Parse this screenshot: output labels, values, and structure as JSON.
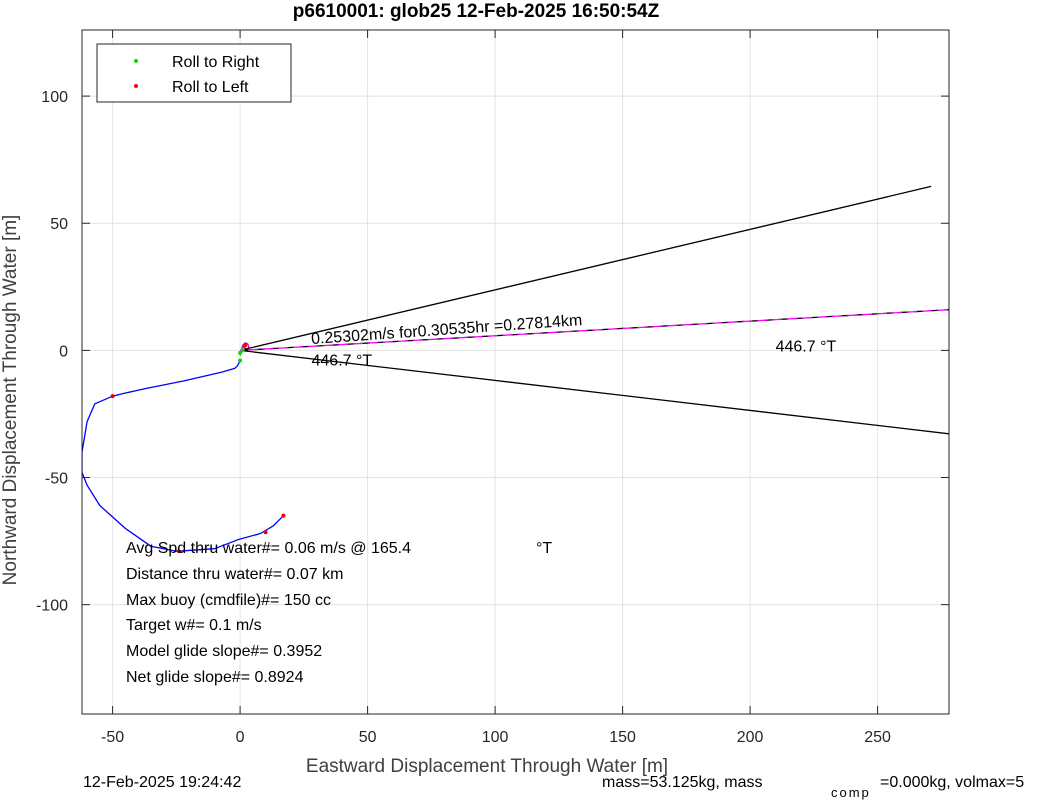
{
  "chart_data": {
    "type": "line",
    "title": "p6610001: glob25 12-Feb-2025 16:50:54Z",
    "xlabel": "Eastward Displacement Through Water [m]",
    "ylabel": "Northward Displacement Through Water [m]",
    "xlim": [
      -62,
      278
    ],
    "ylim": [
      -143,
      126
    ],
    "xticks": [
      -50,
      0,
      50,
      100,
      150,
      200,
      250
    ],
    "yticks": [
      -100,
      -50,
      0,
      50,
      100
    ],
    "xtick_labels": [
      "-50",
      "0",
      "50",
      "100",
      "150",
      "200",
      "250"
    ],
    "ytick_labels": [
      "-100",
      "-50",
      "0",
      "50",
      "100"
    ],
    "grid": true,
    "legend_position": "top-left",
    "legend": [
      {
        "label": "Roll to Right",
        "color": "#00dd00"
      },
      {
        "label": "Roll to Left",
        "color": "#ee0000"
      }
    ],
    "series": [
      {
        "type": "line",
        "color": "#0000ff",
        "x": [
          0,
          -1,
          -2,
          -7,
          -22,
          -37,
          -46,
          -50,
          -57,
          -60,
          -62,
          -62,
          -60,
          -55,
          -45,
          -35,
          -25,
          -10,
          -1,
          8,
          13,
          17
        ],
        "y": [
          -4,
          -6,
          -7,
          -8.5,
          -12,
          -15,
          -17,
          -18,
          -21,
          -28,
          -40,
          -48,
          -53,
          -61,
          -70,
          -77,
          -79,
          -78,
          -74.5,
          -72,
          -69,
          -65
        ]
      },
      {
        "type": "line",
        "color": "#cc00cc",
        "x": [
          0,
          0.5,
          1,
          2,
          3,
          3.5,
          2.5,
          1,
          0.5
        ],
        "y": [
          -2,
          0,
          2,
          3,
          2.5,
          1,
          0.5,
          1.5,
          0
        ]
      },
      {
        "type": "line",
        "color": "#000000",
        "x": [
          0,
          271
        ],
        "y": [
          0,
          64.5
        ]
      },
      {
        "type": "line",
        "color": "#000000",
        "x": [
          0,
          278
        ],
        "y": [
          0,
          -32.8
        ]
      },
      {
        "type": "line",
        "color": "#000000",
        "style": "dashed",
        "x": [
          0,
          278
        ],
        "y": [
          0,
          16
        ]
      },
      {
        "type": "line",
        "color": "#ff00ff",
        "style": "dashed",
        "x": [
          0,
          278
        ],
        "y": [
          0,
          16
        ]
      }
    ],
    "markers": [
      {
        "name": "roll-right",
        "color": "#00dd00",
        "points": [
          [
            0,
            -1
          ],
          [
            0,
            -4
          ],
          [
            1,
            0
          ]
        ]
      },
      {
        "name": "roll-left",
        "color": "#ee0000",
        "points": [
          [
            -50,
            -18
          ],
          [
            -24,
            -79
          ],
          [
            10,
            -71.5
          ],
          [
            17,
            -65
          ],
          [
            2,
            2
          ]
        ]
      }
    ],
    "annotations": [
      {
        "name": "speed-annotation",
        "text": "0.25302m/s for0.30535hr =0.27814km",
        "x": 28,
        "y": 2.5,
        "rotate": -4
      },
      {
        "name": "heading-annotation-lower",
        "text": "446.7  °T",
        "x": 28,
        "y": -6
      },
      {
        "name": "heading-annotation-right",
        "text": "446.7  °T",
        "x": 210,
        "y": -0.5
      }
    ],
    "stats": {
      "avg_speed_label": "Avg Spd thru water#=  0.06 m/s @ 165.4",
      "avg_speed_unit": "°T",
      "distance": "Distance thru water#=  0.07 km",
      "max_buoy": "Max buoy (cmdfile)#= 150 cc",
      "target_w": "Target w#= 0.1 m/s",
      "model_glide": "Model glide slope#= 0.3952",
      "net_glide": "Net glide slope#= 0.8924"
    }
  },
  "footer": {
    "timestamp": "12-Feb-2025 19:24:42",
    "mass_text": "mass=53.125kg, mass",
    "mass_subscript": "comp",
    "mass_tail": "=0.000kg, volmax=5"
  }
}
